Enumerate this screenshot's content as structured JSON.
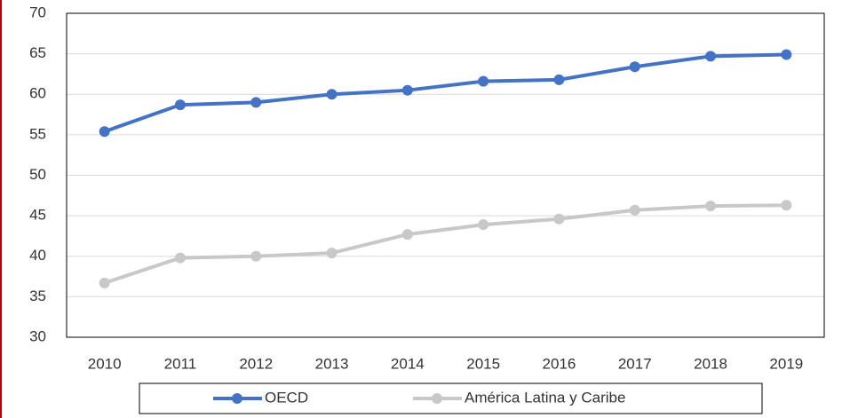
{
  "chart_data": {
    "type": "line",
    "categories": [
      "2010",
      "2011",
      "2012",
      "2013",
      "2014",
      "2015",
      "2016",
      "2017",
      "2018",
      "2019"
    ],
    "series": [
      {
        "name": "OECD",
        "color": "#4472c4",
        "values": [
          55.4,
          58.7,
          59.0,
          60.0,
          60.5,
          61.6,
          61.8,
          63.4,
          64.7,
          64.9
        ]
      },
      {
        "name": "América Latina y Caribe",
        "color": "#c8c8c8",
        "values": [
          36.7,
          39.8,
          40.0,
          40.4,
          42.7,
          43.9,
          44.6,
          45.7,
          46.2,
          46.3
        ]
      }
    ],
    "ylim": [
      30,
      70
    ],
    "yticks": [
      30,
      35,
      40,
      45,
      50,
      55,
      60,
      65,
      70
    ],
    "grid": true,
    "legend": "bottom"
  }
}
